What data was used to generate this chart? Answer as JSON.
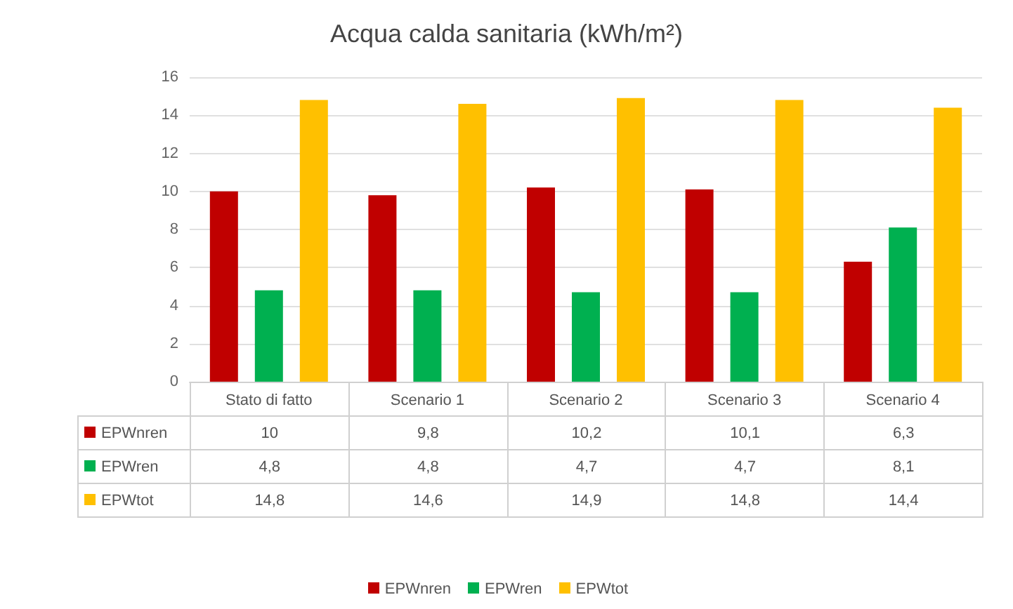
{
  "chart_data": {
    "type": "bar",
    "title": "Acqua calda sanitaria (kWh/m²)",
    "categories": [
      "Stato di fatto",
      "Scenario 1",
      "Scenario 2",
      "Scenario 3",
      "Scenario 4"
    ],
    "series": [
      {
        "name": "EPWnren",
        "color": "#c00000",
        "values": [
          10,
          9.8,
          10.2,
          10.1,
          6.3
        ],
        "value_labels": [
          "10",
          "9,8",
          "10,2",
          "10,1",
          "6,3"
        ]
      },
      {
        "name": "EPWren",
        "color": "#00b050",
        "values": [
          4.8,
          4.8,
          4.7,
          4.7,
          8.1
        ],
        "value_labels": [
          "4,8",
          "4,8",
          "4,7",
          "4,7",
          "8,1"
        ]
      },
      {
        "name": "EPWtot",
        "color": "#ffc000",
        "values": [
          14.8,
          14.6,
          14.9,
          14.8,
          14.4
        ],
        "value_labels": [
          "14,8",
          "14,6",
          "14,9",
          "14,8",
          "14,4"
        ]
      }
    ],
    "ylim": [
      0,
      16
    ],
    "yticks": [
      0,
      2,
      4,
      6,
      8,
      10,
      12,
      14,
      16
    ],
    "grid": "y",
    "legend": "bottom"
  }
}
